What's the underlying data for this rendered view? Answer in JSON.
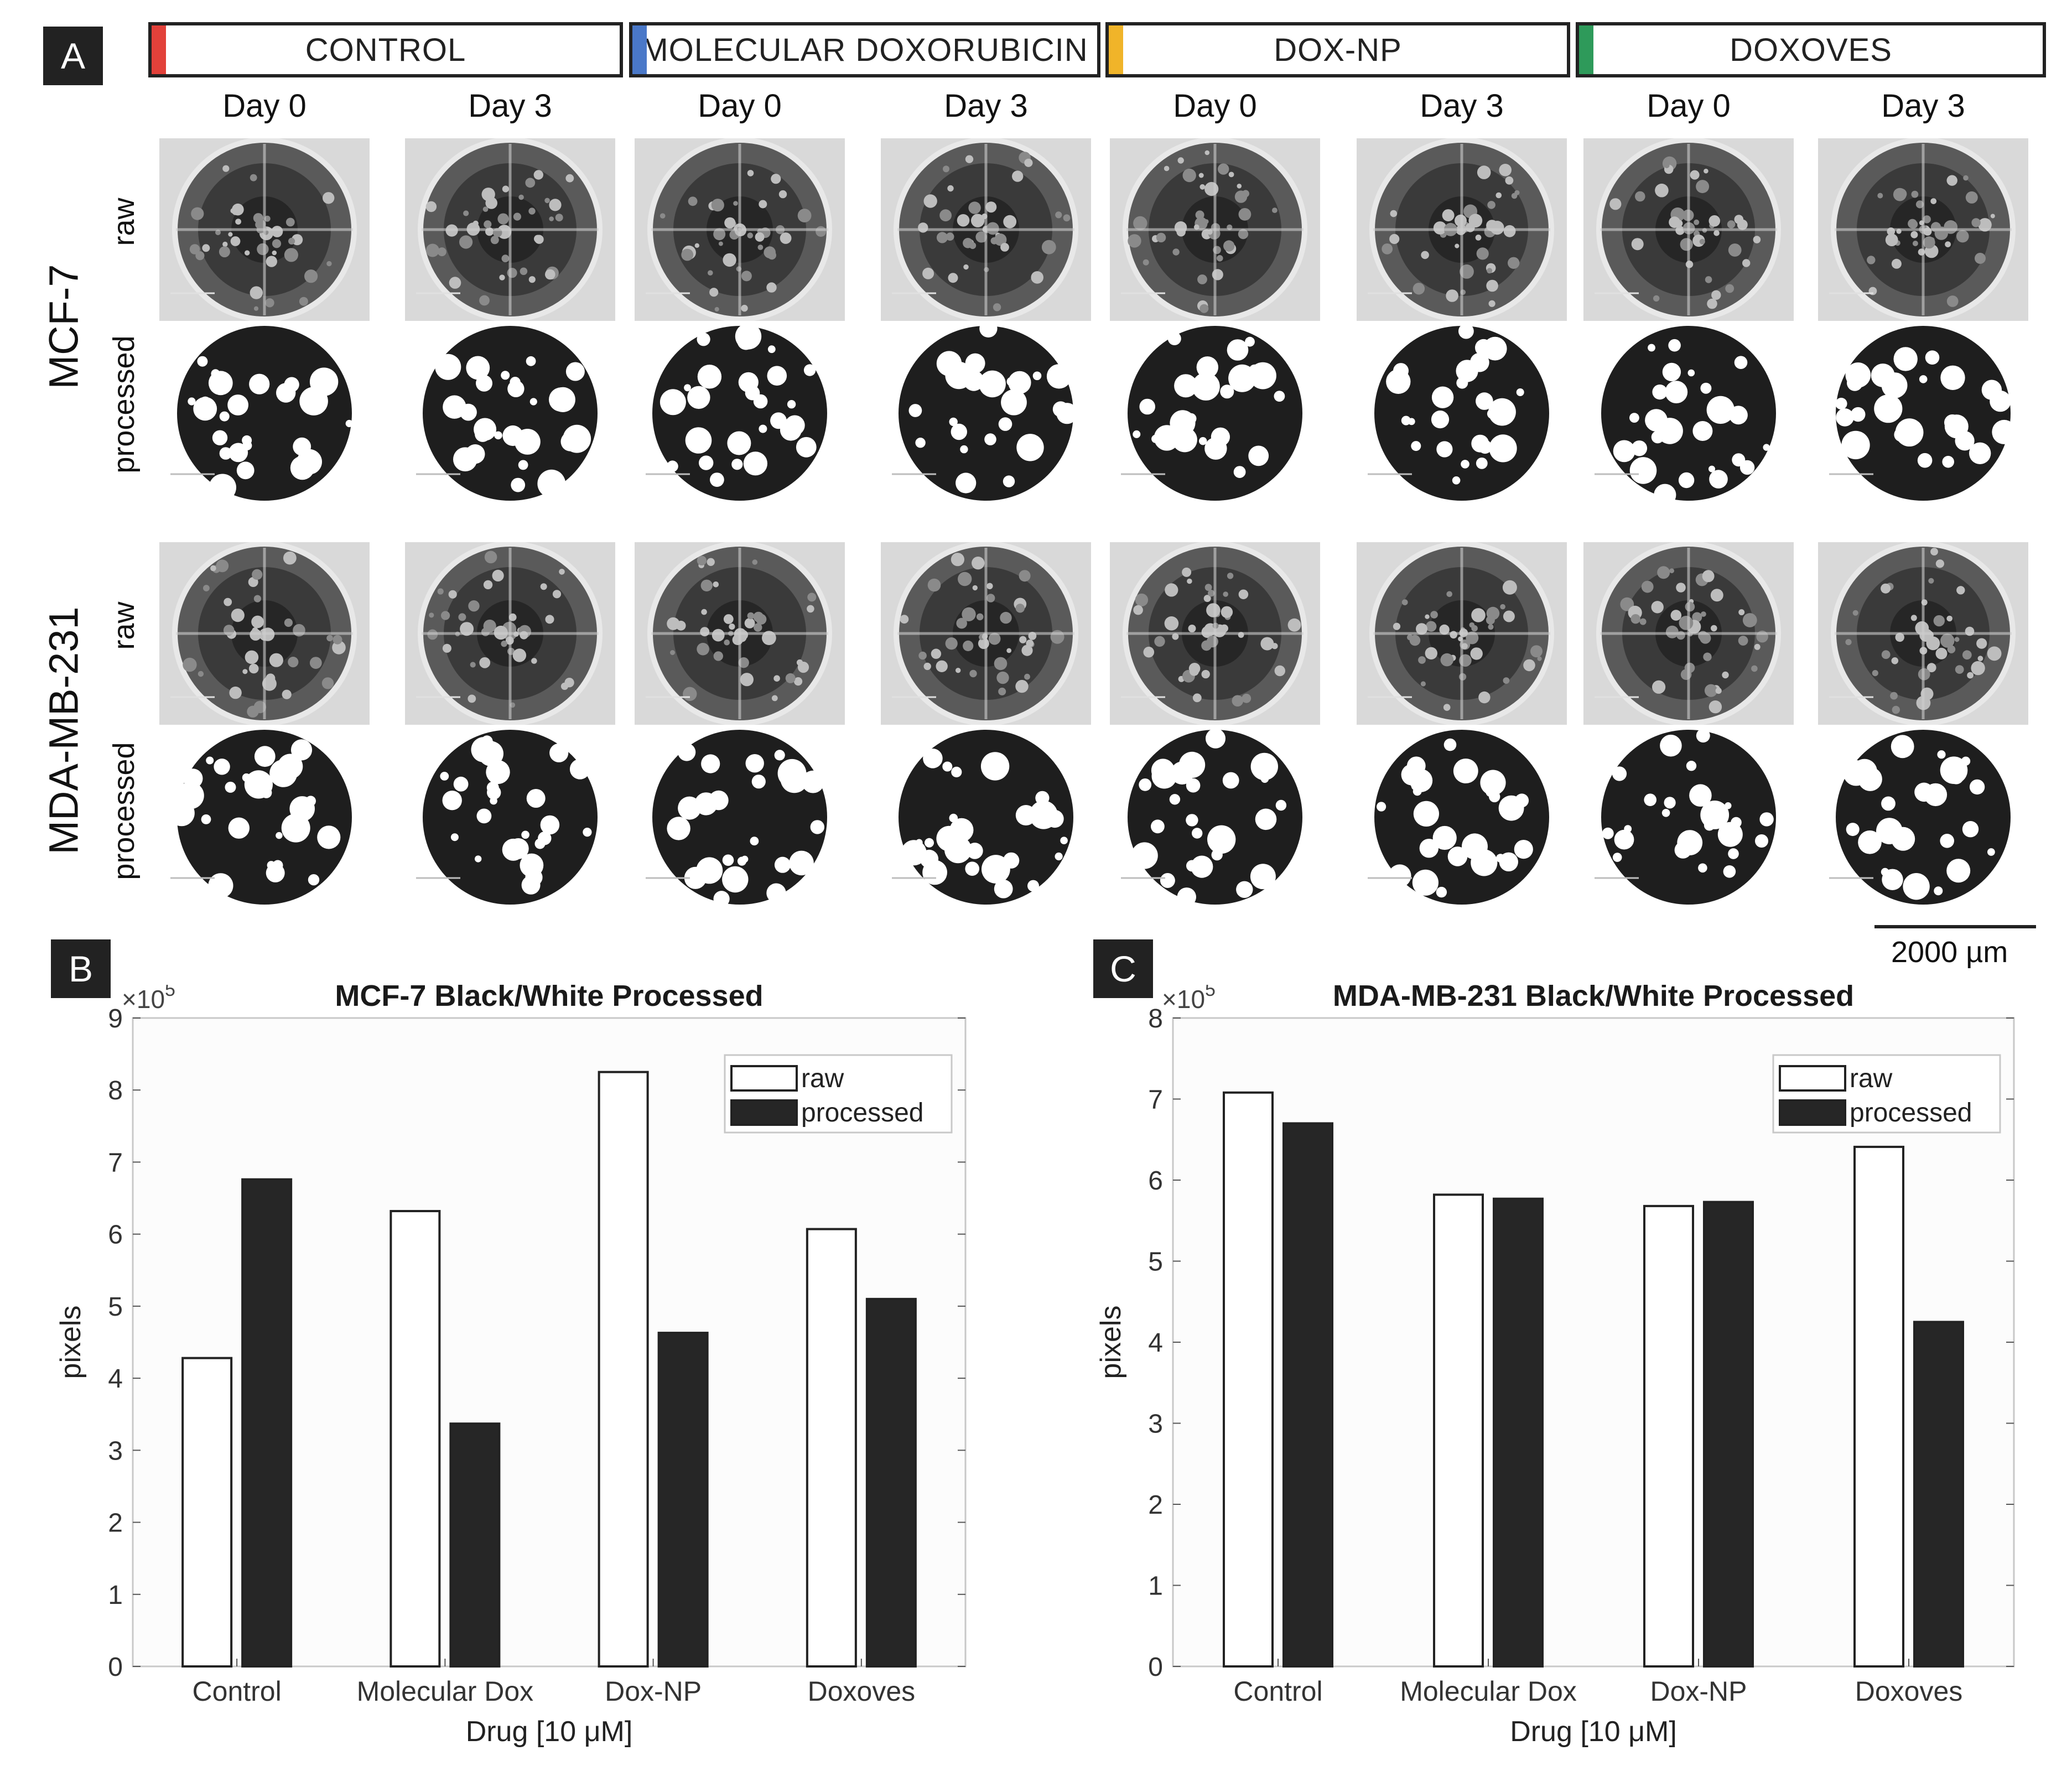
{
  "panel_a": {
    "letter": "A",
    "groups": [
      {
        "label": "CONTROL",
        "color": "#e2413a"
      },
      {
        "label": "MOLECULAR DOXORUBICIN",
        "color": "#4a78c8"
      },
      {
        "label": "DOX-NP",
        "color": "#f0b429"
      },
      {
        "label": "DOXOVES",
        "color": "#2e9a5a"
      }
    ],
    "days": [
      "Day 0",
      "Day 3",
      "Day 0",
      "Day 3",
      "Day 0",
      "Day 3",
      "Day 0",
      "Day 3"
    ],
    "cell_lines": [
      "MCF-7",
      "MDA-MB-231"
    ],
    "row_labels": [
      "raw",
      "processed",
      "raw",
      "processed"
    ],
    "scale_bar_label": "2000 µm"
  },
  "panel_b_letter": "B",
  "panel_c_letter": "C",
  "chart_data": [
    {
      "type": "bar",
      "title": "MCF-7 Black/White Processed",
      "xlabel": "Drug [10 μM]",
      "ylabel": "pixels",
      "exponent_label": "×10",
      "exponent_power": "5",
      "categories": [
        "Control",
        "Molecular Dox",
        "Dox-NP",
        "Doxoves"
      ],
      "series": [
        {
          "name": "raw",
          "values": [
            4.28,
            6.32,
            8.25,
            6.07
          ],
          "fill": "#ffffff"
        },
        {
          "name": "processed",
          "values": [
            6.76,
            3.37,
            4.63,
            5.1
          ],
          "fill": "#262626"
        }
      ],
      "ylim": [
        0,
        9
      ],
      "yticks": [
        0,
        1,
        2,
        3,
        4,
        5,
        6,
        7,
        8,
        9
      ],
      "legend": "top-right",
      "grid": false
    },
    {
      "type": "bar",
      "title": "MDA-MB-231  Black/White Processed",
      "xlabel": "Drug [10 μM]",
      "ylabel": "pixels",
      "exponent_label": "×10",
      "exponent_power": "5",
      "categories": [
        "Control",
        "Molecular Dox",
        "Dox-NP",
        "Doxoves"
      ],
      "series": [
        {
          "name": "raw",
          "values": [
            7.08,
            5.82,
            5.68,
            6.41
          ],
          "fill": "#ffffff"
        },
        {
          "name": "processed",
          "values": [
            6.7,
            5.77,
            5.73,
            4.25
          ],
          "fill": "#262626"
        }
      ],
      "ylim": [
        0,
        8
      ],
      "yticks": [
        0,
        1,
        2,
        3,
        4,
        5,
        6,
        7,
        8
      ],
      "legend": "top-right",
      "grid": false
    }
  ]
}
